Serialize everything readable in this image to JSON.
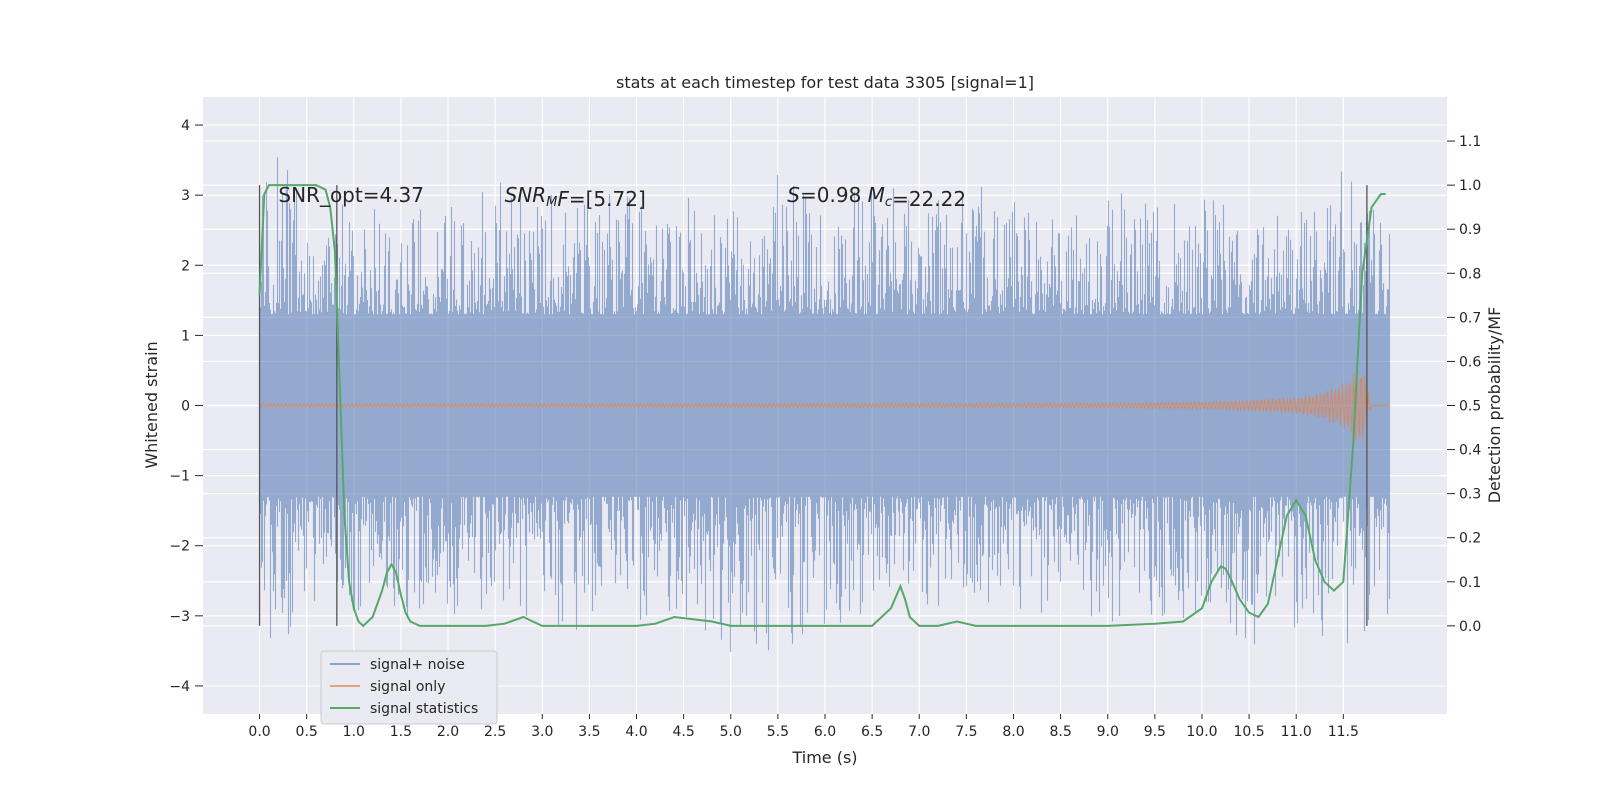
{
  "chart_data": {
    "type": "line",
    "title": "stats at each timestep for test data 3305 [signal=1]",
    "xlabel": "Time (s)",
    "ylabel": "Whitened strain",
    "ylabel_right": "Detection probability/MF",
    "xlim": [
      -0.6,
      12.6
    ],
    "ylim": [
      -4.4,
      4.4
    ],
    "ylim_right": [
      -0.2,
      1.2
    ],
    "x_ticks": [
      0.0,
      0.5,
      1.0,
      1.5,
      2.0,
      2.5,
      3.0,
      3.5,
      4.0,
      4.5,
      5.0,
      5.5,
      6.0,
      6.5,
      7.0,
      7.5,
      8.0,
      8.5,
      9.0,
      9.5,
      10.0,
      10.5,
      11.0,
      11.5
    ],
    "x_tick_labels": [
      "0.0",
      "0.5",
      "1.0",
      "1.5",
      "2.0",
      "2.5",
      "3.0",
      "3.5",
      "4.0",
      "4.5",
      "5.0",
      "5.5",
      "6.0",
      "6.5",
      "7.0",
      "7.5",
      "8.0",
      "8.5",
      "9.0",
      "9.5",
      "10.0",
      "10.5",
      "11.0",
      "11.5"
    ],
    "y_ticks": [
      -4,
      -3,
      -2,
      -1,
      0,
      1,
      2,
      3,
      4
    ],
    "y_tick_labels": [
      "−4",
      "−3",
      "−2",
      "−1",
      "0",
      "1",
      "2",
      "3",
      "4"
    ],
    "y_ticks_right": [
      0.0,
      0.1,
      0.2,
      0.3,
      0.4,
      0.5,
      0.6,
      0.7,
      0.8,
      0.9,
      1.0,
      1.1
    ],
    "y_tick_labels_right": [
      "0.0",
      "0.1",
      "0.2",
      "0.3",
      "0.4",
      "0.5",
      "0.6",
      "0.7",
      "0.8",
      "0.9",
      "1.0",
      "1.1"
    ],
    "grid": true,
    "legend_position": "lower-left",
    "series": [
      {
        "name": "signal+ noise",
        "color": "#4c72b0",
        "axis": "left",
        "x_range": [
          0.0,
          12.0
        ],
        "envelope_x": [
          0.0,
          0.25,
          0.5,
          0.75,
          1.0,
          1.25,
          1.5,
          1.75,
          2.0,
          2.5,
          3.0,
          3.5,
          4.0,
          4.5,
          5.0,
          5.5,
          6.0,
          6.5,
          7.0,
          7.5,
          8.0,
          8.5,
          9.0,
          9.5,
          10.0,
          10.5,
          11.0,
          11.5,
          12.0
        ],
        "upper_envelope": [
          2.9,
          3.9,
          2.5,
          3.0,
          2.8,
          3.0,
          3.1,
          2.9,
          2.9,
          3.2,
          3.1,
          3.0,
          3.1,
          3.0,
          2.8,
          3.3,
          2.9,
          3.7,
          2.8,
          3.2,
          3.1,
          2.7,
          3.1,
          2.9,
          3.0,
          3.0,
          2.9,
          3.4,
          2.7
        ],
        "lower_envelope": [
          -3.7,
          -3.4,
          -2.8,
          -2.8,
          -3.0,
          -2.9,
          -3.2,
          -3.0,
          -3.0,
          -3.0,
          -3.1,
          -3.3,
          -3.2,
          -3.0,
          -3.6,
          -3.5,
          -3.4,
          -2.9,
          -3.0,
          -2.8,
          -2.9,
          -3.0,
          -3.1,
          -3.0,
          -3.1,
          -3.5,
          -3.2,
          -3.5,
          -3.0
        ]
      },
      {
        "name": "signal only",
        "color": "#dd8452",
        "axis": "left",
        "x_range": [
          0.0,
          12.0
        ],
        "envelope_x": [
          0.0,
          9.0,
          10.0,
          10.5,
          11.0,
          11.25,
          11.5,
          11.6,
          11.7,
          11.8,
          12.0
        ],
        "envelope": [
          0.02,
          0.03,
          0.05,
          0.08,
          0.12,
          0.18,
          0.32,
          0.45,
          0.6,
          0.0,
          0.0
        ]
      },
      {
        "name": "signal statistics",
        "color": "#55a868",
        "axis": "right",
        "x": [
          0.0,
          0.05,
          0.1,
          0.2,
          0.3,
          0.4,
          0.5,
          0.6,
          0.7,
          0.75,
          0.8,
          0.85,
          0.9,
          0.95,
          1.0,
          1.05,
          1.1,
          1.2,
          1.3,
          1.35,
          1.4,
          1.45,
          1.5,
          1.55,
          1.6,
          1.7,
          1.8,
          2.0,
          2.4,
          2.6,
          2.8,
          2.9,
          3.0,
          3.2,
          3.6,
          4.0,
          4.2,
          4.4,
          4.6,
          4.8,
          5.0,
          5.5,
          6.0,
          6.5,
          6.7,
          6.8,
          6.85,
          6.9,
          7.0,
          7.2,
          7.4,
          7.5,
          7.6,
          8.0,
          8.5,
          9.0,
          9.5,
          9.8,
          10.0,
          10.1,
          10.2,
          10.25,
          10.3,
          10.4,
          10.5,
          10.6,
          10.7,
          10.8,
          10.9,
          11.0,
          11.1,
          11.2,
          11.3,
          11.4,
          11.5,
          11.6,
          11.7,
          11.8,
          11.9,
          11.95
        ],
        "values": [
          0.75,
          0.98,
          1.0,
          1.0,
          1.0,
          1.0,
          1.0,
          1.0,
          0.99,
          0.95,
          0.85,
          0.55,
          0.25,
          0.1,
          0.04,
          0.01,
          0.0,
          0.02,
          0.08,
          0.12,
          0.14,
          0.12,
          0.07,
          0.03,
          0.01,
          0.0,
          0.0,
          0.0,
          0.0,
          0.005,
          0.02,
          0.01,
          0.0,
          0.0,
          0.0,
          0.0,
          0.005,
          0.02,
          0.015,
          0.01,
          0.0,
          0.0,
          0.0,
          0.0,
          0.04,
          0.09,
          0.06,
          0.02,
          0.0,
          0.0,
          0.01,
          0.005,
          0.0,
          0.0,
          0.0,
          0.0,
          0.005,
          0.01,
          0.04,
          0.1,
          0.135,
          0.13,
          0.11,
          0.06,
          0.03,
          0.02,
          0.05,
          0.15,
          0.25,
          0.285,
          0.25,
          0.15,
          0.1,
          0.08,
          0.1,
          0.4,
          0.8,
          0.95,
          0.98,
          0.98
        ]
      }
    ],
    "vertical_markers": [
      0.0,
      0.82,
      11.75
    ],
    "annotations": [
      {
        "parts": [
          {
            "text": "SNR_opt=4.37",
            "italic": false
          }
        ],
        "x": 0.2,
        "y": 3.0
      },
      {
        "parts": [
          {
            "text": "SNR",
            "italic": true
          },
          {
            "text": "M",
            "italic": true,
            "sub": true
          },
          {
            "text": "F",
            "italic": true
          },
          {
            "text": "=[5.72]",
            "italic": false
          }
        ],
        "x": 2.6,
        "y": 3.0
      },
      {
        "parts": [
          {
            "text": "S",
            "italic": true
          },
          {
            "text": "=0.98   ",
            "italic": false
          },
          {
            "text": "M",
            "italic": true
          },
          {
            "text": "c",
            "italic": true,
            "sub": true
          },
          {
            "text": "=22.22",
            "italic": false
          }
        ],
        "x": 5.6,
        "y": 3.0
      }
    ]
  }
}
